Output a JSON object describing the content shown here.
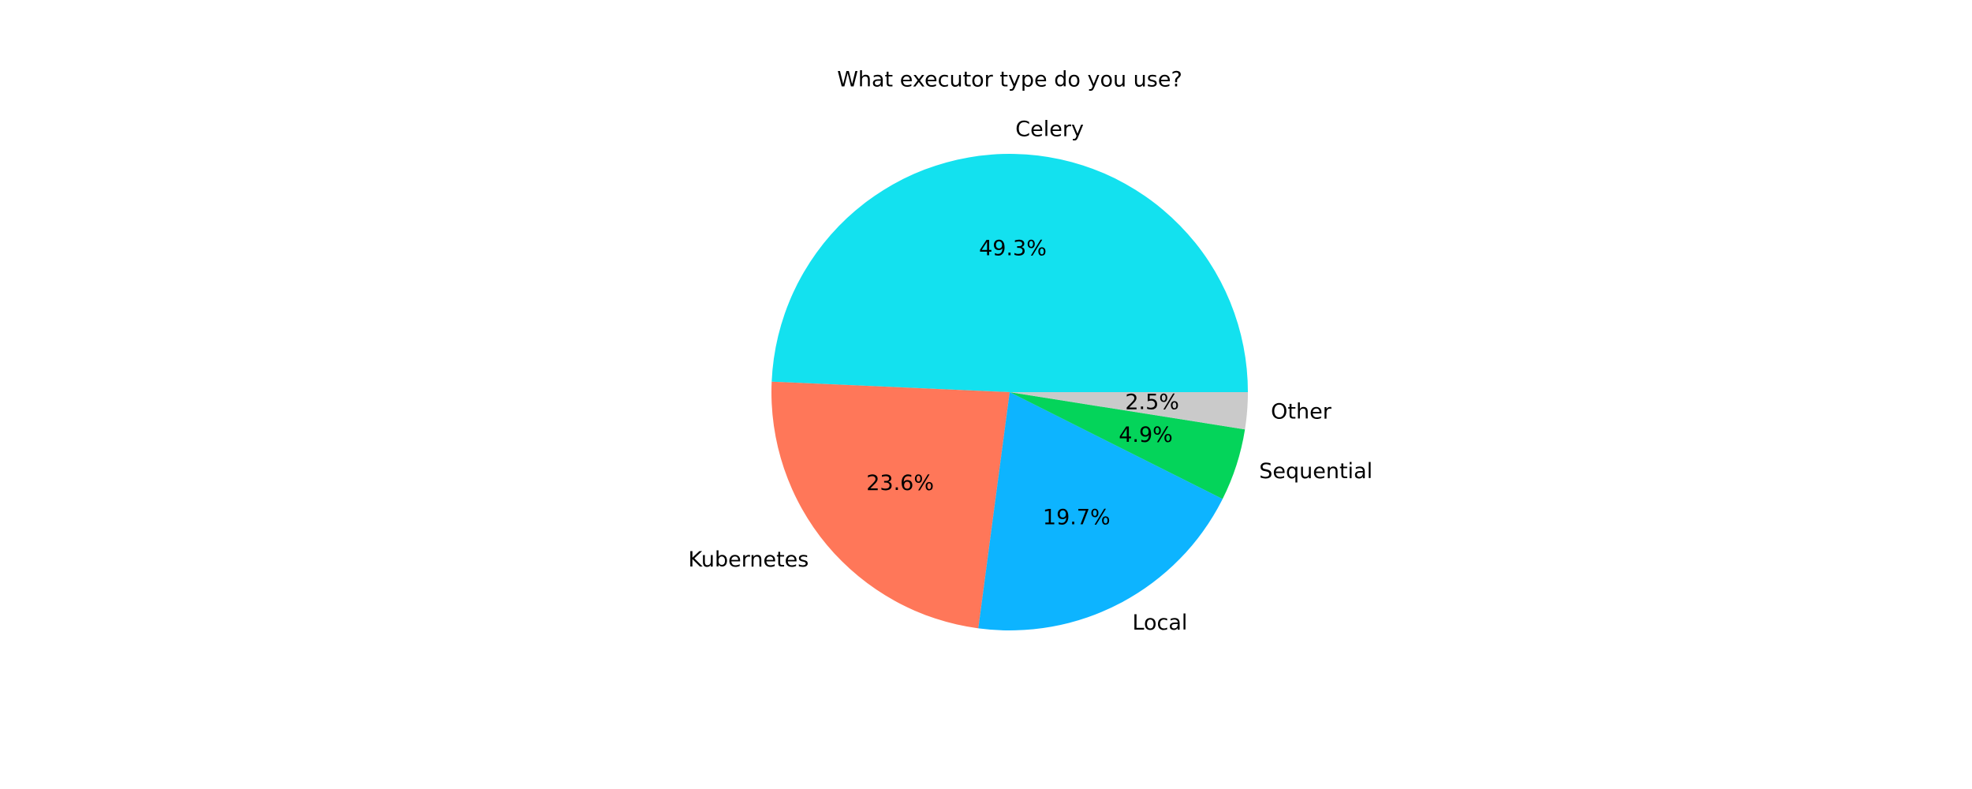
{
  "chart_data": {
    "type": "pie",
    "title": "What executor type do you use?",
    "categories": [
      "Celery",
      "Kubernetes",
      "Local",
      "Sequential",
      "Other"
    ],
    "values": [
      49.3,
      23.6,
      19.7,
      4.9,
      2.5
    ],
    "value_labels": [
      "49.3%",
      "23.6%",
      "19.7%",
      "4.9%",
      "2.5%"
    ],
    "colors": [
      "#13e1ef",
      "#ff7759",
      "#0db4ff",
      "#04d45a",
      "#cacaca"
    ]
  }
}
